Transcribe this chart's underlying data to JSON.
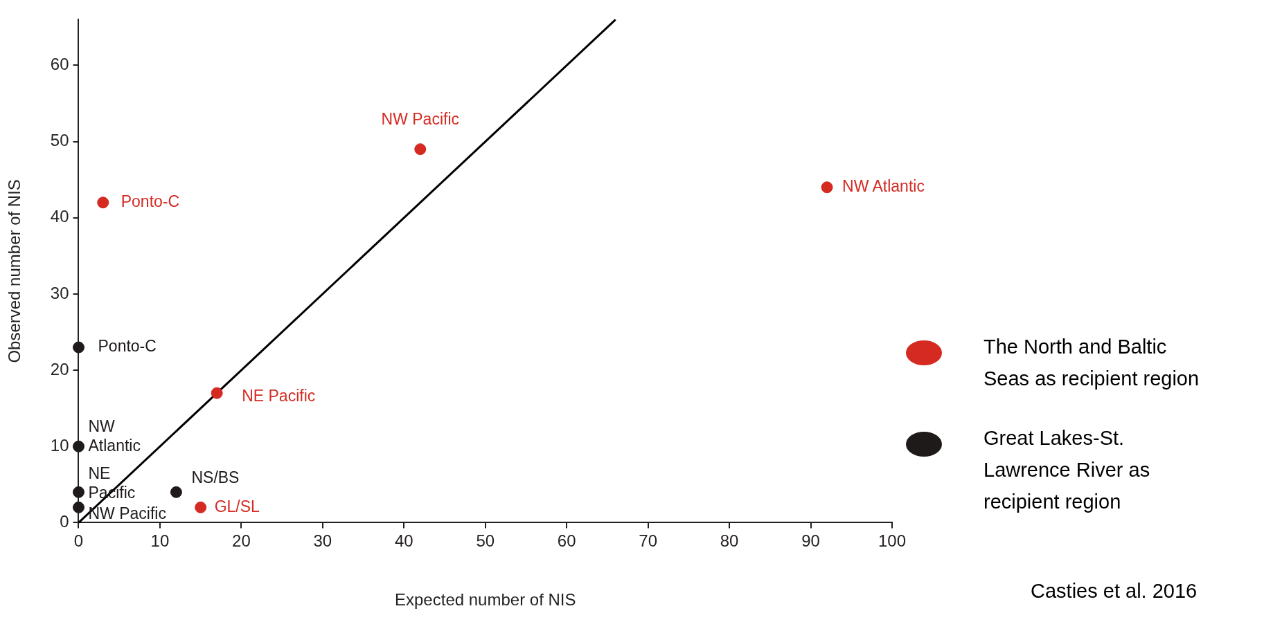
{
  "chart_data": {
    "type": "scatter",
    "xlabel": "Expected number of NIS",
    "ylabel": "Observed number of NIS",
    "series": [
      {
        "name": "The North and Baltic Seas as recipient region",
        "color": "#d42a22",
        "x": [
          3,
          42,
          92,
          17,
          15
        ],
        "values": [
          42,
          49,
          44,
          17,
          2
        ]
      },
      {
        "name": "Great Lakes-St. Lawrence River as recipient region",
        "color": "#1e1a1a",
        "x": [
          0,
          0,
          0,
          0,
          12
        ],
        "values": [
          23,
          10,
          4,
          2,
          4
        ]
      },
      {
        "type": "line",
        "color": "#000000",
        "x": [
          0,
          66
        ],
        "values": [
          0,
          66
        ],
        "marker": "none"
      }
    ],
    "xlim": [
      0,
      100
    ],
    "ylim": [
      0,
      66
    ],
    "xticks": [
      0,
      10,
      20,
      30,
      40,
      50,
      60,
      70,
      80,
      90,
      100
    ],
    "yticks": [
      0,
      10,
      20,
      30,
      40,
      50,
      60
    ],
    "marker": "circle",
    "line_style": "solid",
    "grid": false,
    "legend": "right",
    "annotations": [
      {
        "text": "Ponto-C",
        "x": 3,
        "y": 42
      },
      {
        "text": "NW Pacific",
        "x": 42,
        "y": 49
      },
      {
        "text": "NW Atlantic",
        "x": 92,
        "y": 44
      },
      {
        "text": "NE Pacific",
        "x": 17,
        "y": 17
      },
      {
        "text": "GL/SL",
        "x": 15,
        "y": 2
      },
      {
        "text": "Ponto-C",
        "x": 0,
        "y": 23
      },
      {
        "text": "NW Atlantic",
        "x": 0,
        "y": 10
      },
      {
        "text": "NE Pacific",
        "x": 0,
        "y": 4
      },
      {
        "text": "NW Pacific",
        "x": 0,
        "y": 2
      },
      {
        "text": "NS/BS",
        "x": 12,
        "y": 4
      },
      "Casties et al. 2016"
    ]
  }
}
